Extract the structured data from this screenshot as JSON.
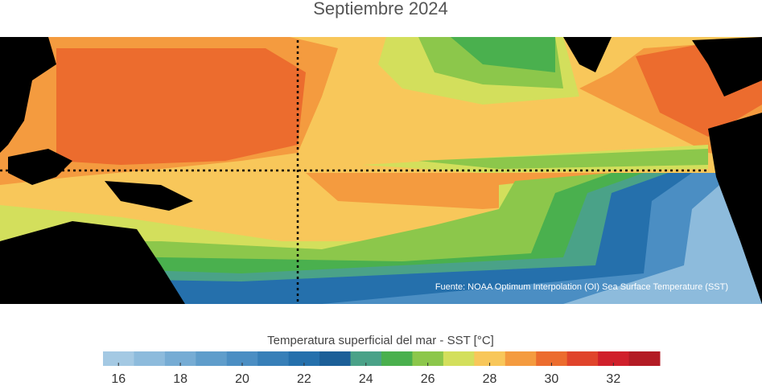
{
  "title": "Septiembre 2024",
  "source": "Fuente: NOAA Optimum Interpolation (OI) Sea Surface Temperature (SST)",
  "colorbar": {
    "label": "Temperatura superficial del mar - SST  [°C]",
    "bins": [
      15.5,
      16.5,
      17.5,
      18.5,
      19.5,
      20.5,
      21.5,
      22.5,
      23.5,
      24.5,
      25.5,
      26.5,
      27.5,
      28.5,
      29.5,
      30.5,
      31.5,
      32.5,
      33.5
    ],
    "colors": [
      "#a4c9e3",
      "#8dbbdc",
      "#76acd4",
      "#5f9dcb",
      "#4b8ec3",
      "#377fb8",
      "#2570ac",
      "#1c5f98",
      "#4aa288",
      "#4ab04e",
      "#8cc74b",
      "#d3df5c",
      "#f8c75a",
      "#f49b3f",
      "#ec6c2e",
      "#e0442b",
      "#d0202b",
      "#b31b24"
    ],
    "ticks": [
      16,
      18,
      20,
      22,
      24,
      26,
      28,
      30,
      32
    ]
  }
}
